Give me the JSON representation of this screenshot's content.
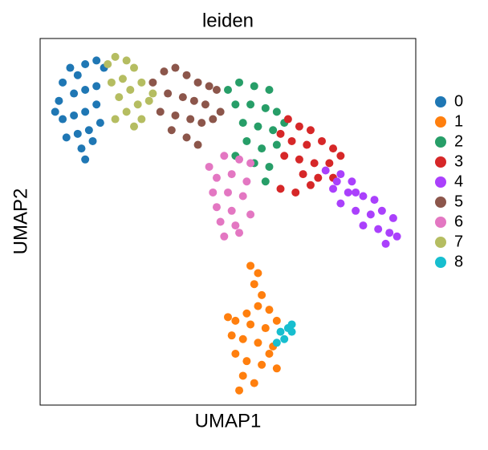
{
  "chart_data": {
    "type": "scatter",
    "title": "leiden",
    "x_label": "UMAP1",
    "y_label": "UMAP2",
    "xlim": [
      0,
      100
    ],
    "ylim": [
      0,
      100
    ],
    "legend": "right",
    "series": [
      {
        "name": "0",
        "color": "#1f77b4",
        "x": [
          5,
          6,
          8,
          10,
          12,
          15,
          17,
          9,
          12,
          15,
          6,
          9,
          12,
          15,
          7,
          10,
          13,
          16,
          11,
          12,
          4,
          14
        ],
        "y": [
          83,
          88,
          92,
          90,
          93,
          94,
          92,
          85,
          86,
          87,
          78,
          79,
          80,
          82,
          73,
          74,
          75,
          77,
          70,
          67,
          80,
          72
        ]
      },
      {
        "name": "1",
        "color": "#ff7f0e",
        "x": [
          56,
          58,
          57,
          59,
          58,
          55,
          61,
          52,
          56,
          60,
          63,
          51,
          54,
          58,
          62,
          52,
          55,
          59,
          63,
          54,
          57,
          53,
          61,
          50
        ],
        "y": [
          38,
          36,
          33,
          30,
          27,
          25,
          26,
          23,
          22,
          21,
          23,
          19,
          18,
          17,
          16,
          14,
          12,
          11,
          10,
          8,
          6,
          4,
          14,
          24
        ]
      },
      {
        "name": "2",
        "color": "#279e68",
        "x": [
          50,
          53,
          57,
          61,
          52,
          56,
          60,
          63,
          54,
          58,
          62,
          65,
          55,
          59,
          63,
          57,
          61,
          60,
          52
        ],
        "y": [
          86,
          88,
          87,
          86,
          82,
          82,
          81,
          80,
          77,
          76,
          75,
          77,
          72,
          70,
          71,
          66,
          65,
          61,
          68
        ]
      },
      {
        "name": "3",
        "color": "#d62728",
        "x": [
          66,
          69,
          72,
          64,
          67,
          71,
          75,
          78,
          65,
          69,
          73,
          77,
          80,
          70,
          74,
          78,
          64,
          68,
          72
        ],
        "y": [
          78,
          76,
          75,
          74,
          72,
          71,
          72,
          70,
          68,
          67,
          66,
          66,
          68,
          63,
          62,
          62,
          59,
          58,
          60
        ]
      },
      {
        "name": "4",
        "color": "#aa40fc",
        "x": [
          76,
          80,
          83,
          78,
          82,
          86,
          89,
          80,
          84,
          88,
          91,
          94,
          86,
          90,
          93,
          95,
          92,
          84,
          79
        ],
        "y": [
          64,
          63,
          61,
          59,
          58,
          57,
          56,
          55,
          53,
          52,
          53,
          51,
          49,
          48,
          47,
          46,
          44,
          58,
          61
        ]
      },
      {
        "name": "5",
        "color": "#8c564b",
        "x": [
          30,
          33,
          36,
          39,
          42,
          45,
          34,
          38,
          41,
          44,
          47,
          32,
          36,
          40,
          43,
          46,
          39,
          42,
          35,
          48
        ],
        "y": [
          88,
          91,
          92,
          90,
          88,
          87,
          85,
          84,
          83,
          82,
          86,
          80,
          79,
          78,
          77,
          78,
          73,
          71,
          75,
          80
        ]
      },
      {
        "name": "6",
        "color": "#e377c2",
        "x": [
          45,
          49,
          53,
          56,
          47,
          51,
          55,
          46,
          50,
          54,
          47,
          51,
          48,
          52,
          49,
          53,
          56
        ],
        "y": [
          65,
          68,
          67,
          66,
          62,
          63,
          61,
          58,
          58,
          57,
          54,
          53,
          50,
          49,
          46,
          47,
          52
        ]
      },
      {
        "name": "7",
        "color": "#b5bd61",
        "x": [
          18,
          20,
          23,
          25,
          22,
          19,
          24,
          27,
          21,
          26,
          29,
          23,
          20,
          27,
          30,
          25
        ],
        "y": [
          93,
          95,
          94,
          92,
          89,
          88,
          86,
          88,
          84,
          82,
          83,
          80,
          78,
          78,
          85,
          76
        ]
      },
      {
        "name": "8",
        "color": "#17becf",
        "x": [
          64,
          66,
          67,
          65,
          63,
          67
        ],
        "y": [
          20,
          21,
          20,
          18,
          17,
          22
        ]
      }
    ]
  }
}
